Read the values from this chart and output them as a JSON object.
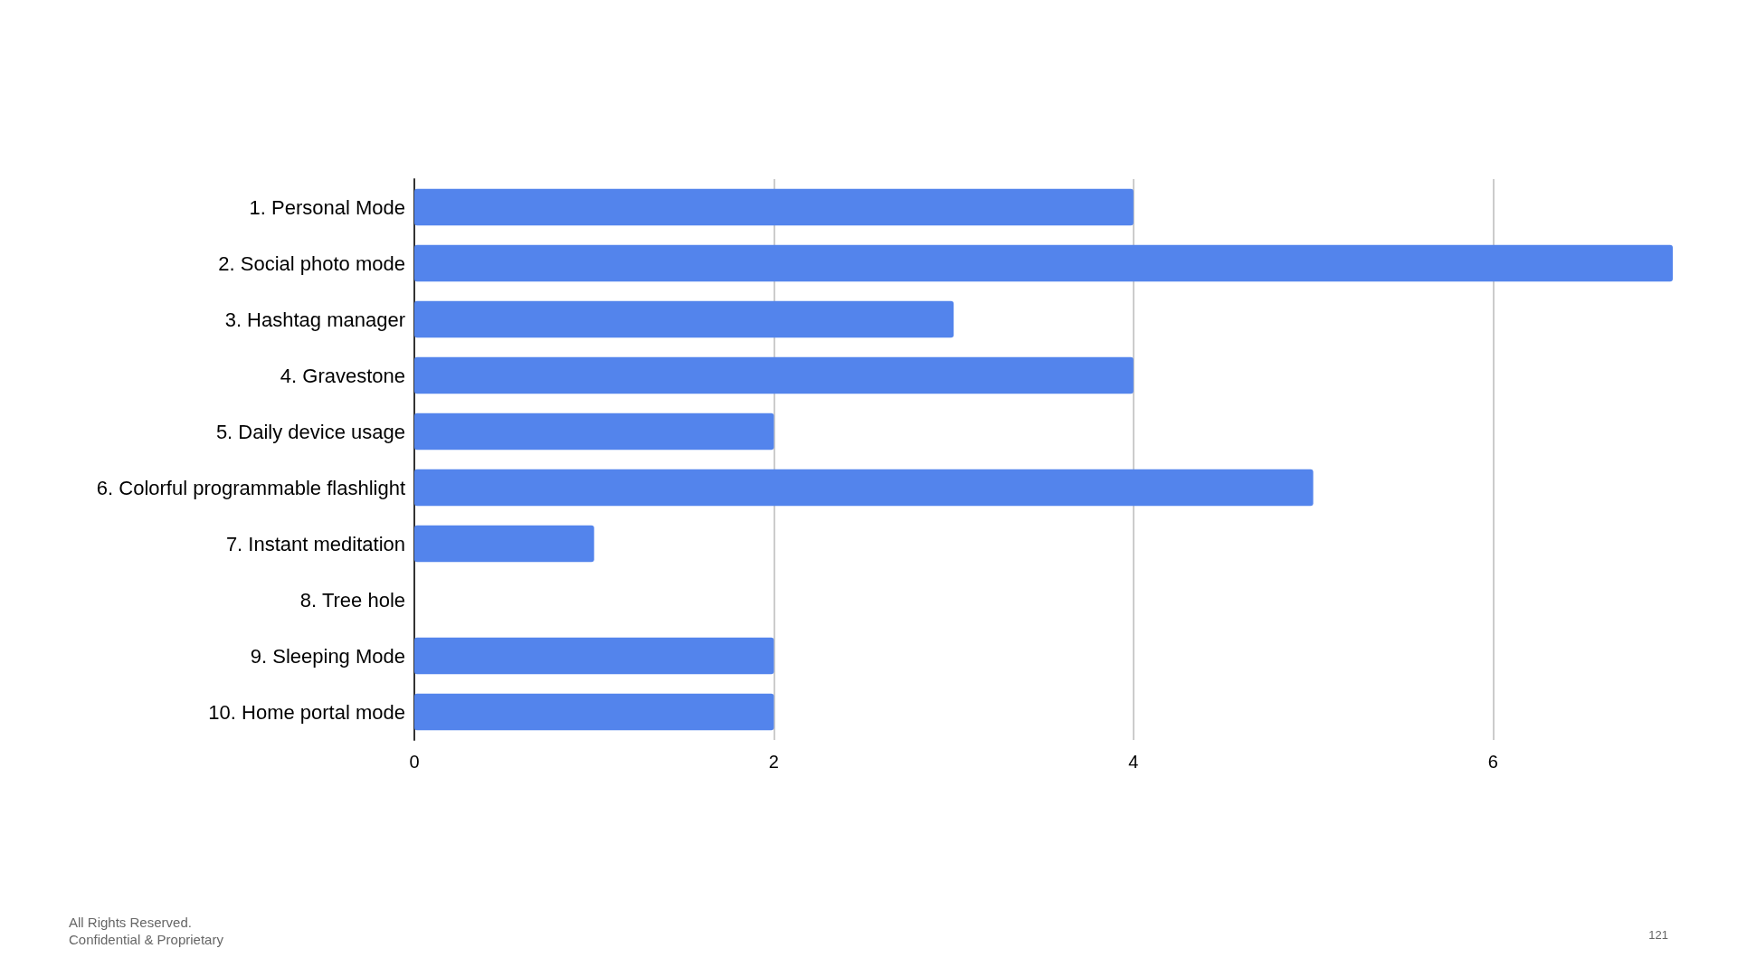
{
  "chart_data": {
    "type": "bar",
    "orientation": "horizontal",
    "categories": [
      "1. Personal Mode",
      "2. Social photo mode",
      "3. Hashtag manager",
      "4. Gravestone",
      "5. Daily device usage",
      "6. Colorful programmable flashlight",
      "7. Instant meditation",
      "8. Tree hole",
      "9. Sleeping Mode",
      "10. Home portal mode"
    ],
    "values": [
      4,
      7,
      3,
      4,
      2,
      5,
      1,
      0,
      2,
      2
    ],
    "color": "#5384ec",
    "xlim": [
      0,
      7
    ],
    "xticks": [
      0,
      2,
      4,
      6
    ],
    "grid": "x",
    "annotations": [
      "All Rights Reserved.\nConfidential & Proprietary",
      "121"
    ]
  }
}
